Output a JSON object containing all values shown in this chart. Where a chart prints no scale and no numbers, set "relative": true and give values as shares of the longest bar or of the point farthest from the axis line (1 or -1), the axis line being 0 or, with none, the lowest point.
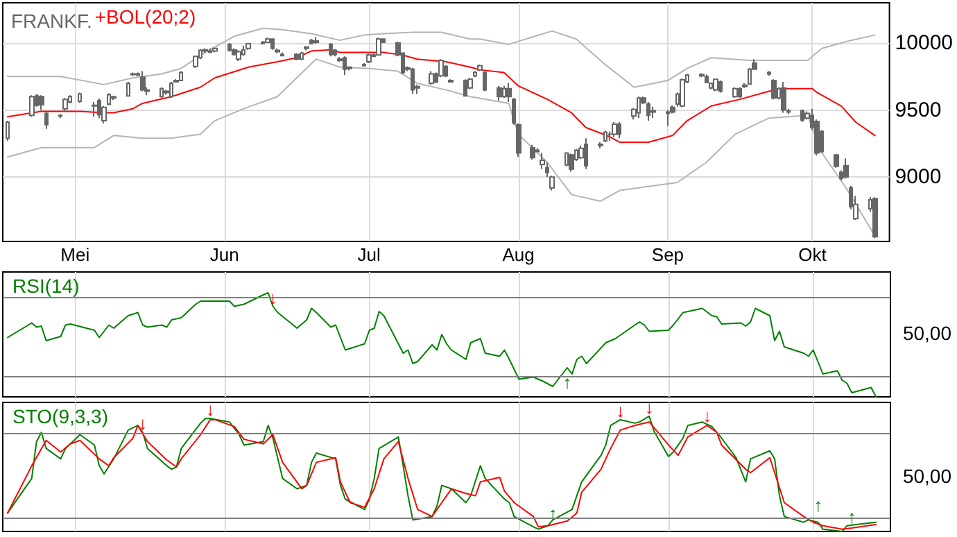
{
  "chart_data": [
    {
      "type": "candlestick",
      "title": "FRANKF.",
      "legend": "top left",
      "grid": true,
      "marker": "none",
      "xlim": [
        "--04-16",
        "--10-17"
      ],
      "xticks": [
        {
          "value": "--05-01",
          "label": "Mei"
        },
        {
          "value": "--06-01",
          "label": "Jun"
        },
        {
          "value": "--07-01",
          "label": "Jul"
        },
        {
          "value": "--08-01",
          "label": "Aug"
        },
        {
          "value": "--09-01",
          "label": "Sep"
        },
        {
          "value": "--10-01",
          "label": "Okt"
        }
      ],
      "ylim": [
        8520,
        10300
      ],
      "yticks": [
        9000,
        9500,
        10000
      ],
      "series": [
        {
          "color": "#666666",
          "x": [
            "--04-17",
            "--04-22",
            "--04-23",
            "--04-24",
            "--04-25",
            "--04-28",
            "--04-29",
            "--04-30",
            "--05-02",
            "--05-05",
            "--05-06",
            "--05-07",
            "--05-08",
            "--05-09",
            "--05-12",
            "--05-13",
            "--05-14",
            "--05-15",
            "--05-16",
            "--05-19",
            "--05-20",
            "--05-21",
            "--05-22",
            "--05-23",
            "--05-26",
            "--05-27",
            "--05-28",
            "--05-29",
            "--05-30",
            "--06-02",
            "--06-03",
            "--06-04",
            "--06-05",
            "--06-06",
            "--06-09",
            "--06-10",
            "--06-11",
            "--06-12",
            "--06-13",
            "--06-16",
            "--06-17",
            "--06-18",
            "--06-19",
            "--06-20",
            "--06-23",
            "--06-24",
            "--06-25",
            "--06-26",
            "--06-27",
            "--06-30",
            "--07-01",
            "--07-02",
            "--07-03",
            "--07-04",
            "--07-07",
            "--07-08",
            "--07-09",
            "--07-10",
            "--07-11",
            "--07-14",
            "--07-15",
            "--07-16",
            "--07-17",
            "--07-18",
            "--07-21",
            "--07-22",
            "--07-23",
            "--07-24",
            "--07-25",
            "--07-28",
            "--07-29",
            "--07-30",
            "--07-31",
            "--08-01",
            "--08-04",
            "--08-05",
            "--08-06",
            "--08-07",
            "--08-08",
            "--08-11",
            "--08-12",
            "--08-13",
            "--08-14",
            "--08-15",
            "--08-18",
            "--08-19",
            "--08-20",
            "--08-21",
            "--08-22",
            "--08-25",
            "--08-26",
            "--08-27",
            "--08-28",
            "--08-29",
            "--09-01",
            "--09-02",
            "--09-03",
            "--09-04",
            "--09-05",
            "--09-08",
            "--09-09",
            "--09-10",
            "--09-11",
            "--09-12",
            "--09-15",
            "--09-16",
            "--09-17",
            "--09-18",
            "--09-19",
            "--09-22",
            "--09-23",
            "--09-24",
            "--09-25",
            "--09-26",
            "--09-29",
            "--09-30",
            "--10-01",
            "--10-02",
            "--10-03",
            "--10-06",
            "--10-07",
            "--10-08",
            "--10-09",
            "--10-10",
            "--10-13",
            "--10-14"
          ],
          "ohlc": [
            [
              9290,
              9420,
              9270,
              9410
            ],
            [
              9460,
              9610,
              9450,
              9600
            ],
            [
              9605,
              9620,
              9525,
              9535
            ],
            [
              9600,
              9610,
              9500,
              9540
            ],
            [
              9475,
              9490,
              9360,
              9390
            ],
            [
              9455,
              9470,
              9440,
              9460
            ],
            [
              9510,
              9590,
              9490,
              9580
            ],
            [
              9560,
              9610,
              9550,
              9600
            ],
            [
              9565,
              9630,
              9555,
              9620
            ],
            [
              9535,
              9560,
              9450,
              9530
            ],
            [
              9570,
              9585,
              9440,
              9465
            ],
            [
              9420,
              9530,
              9400,
              9520
            ],
            [
              9545,
              9625,
              9535,
              9615
            ],
            [
              9590,
              9605,
              9575,
              9600
            ],
            [
              9605,
              9710,
              9600,
              9700
            ],
            [
              9765,
              9780,
              9755,
              9770
            ],
            [
              9770,
              9780,
              9755,
              9760
            ],
            [
              9745,
              9790,
              9640,
              9650
            ],
            [
              9640,
              9670,
              9610,
              9650
            ],
            [
              9600,
              9670,
              9585,
              9660
            ],
            [
              9630,
              9650,
              9615,
              9640
            ],
            [
              9600,
              9710,
              9590,
              9700
            ],
            [
              9720,
              9730,
              9705,
              9710
            ],
            [
              9720,
              9790,
              9715,
              9780
            ],
            [
              9825,
              9905,
              9815,
              9900
            ],
            [
              9890,
              9955,
              9880,
              9945
            ],
            [
              9940,
              9960,
              9925,
              9950
            ],
            [
              9940,
              9960,
              9925,
              9930
            ],
            [
              9940,
              9965,
              9930,
              9960
            ],
            [
              9990,
              10000,
              9935,
              9945
            ],
            [
              9950,
              9960,
              9905,
              9915
            ],
            [
              9880,
              9945,
              9865,
              9935
            ],
            [
              9915,
              9980,
              9905,
              9950
            ],
            [
              9960,
              10000,
              9950,
              9995
            ],
            [
              10005,
              10015,
              9990,
              9995
            ],
            [
              10005,
              10040,
              10000,
              10030
            ],
            [
              10030,
              10035,
              9950,
              9960
            ],
            [
              9945,
              9960,
              9925,
              9935
            ],
            [
              9915,
              9930,
              9900,
              9905
            ],
            [
              9915,
              9925,
              9870,
              9880
            ],
            [
              9880,
              9935,
              9870,
              9925
            ],
            [
              9960,
              9975,
              9945,
              9970
            ],
            [
              10020,
              10030,
              9990,
              9995
            ],
            [
              10005,
              10045,
              9995,
              10015
            ],
            [
              9990,
              10000,
              9900,
              9915
            ],
            [
              9945,
              9955,
              9900,
              9915
            ],
            [
              9880,
              9895,
              9860,
              9870
            ],
            [
              9890,
              9900,
              9760,
              9805
            ],
            [
              9810,
              9825,
              9795,
              9820
            ],
            [
              9840,
              9850,
              9825,
              9830
            ],
            [
              9860,
              9920,
              9850,
              9910
            ],
            [
              9910,
              9925,
              9895,
              9900
            ],
            [
              9910,
              10040,
              9905,
              10030
            ],
            [
              10030,
              10035,
              10000,
              10005
            ],
            [
              10000,
              10010,
              9900,
              9910
            ],
            [
              9925,
              9930,
              9770,
              9780
            ],
            [
              9805,
              9825,
              9790,
              9815
            ],
            [
              9805,
              9815,
              9620,
              9650
            ],
            [
              9675,
              9690,
              9620,
              9665
            ],
            [
              9700,
              9790,
              9690,
              9770
            ],
            [
              9770,
              9780,
              9700,
              9710
            ],
            [
              9755,
              9880,
              9745,
              9870
            ],
            [
              9825,
              9835,
              9745,
              9755
            ],
            [
              9720,
              9730,
              9705,
              9710
            ],
            [
              9720,
              9730,
              9600,
              9605
            ],
            [
              9665,
              9740,
              9655,
              9730
            ],
            [
              9755,
              9790,
              9745,
              9780
            ],
            [
              9800,
              9840,
              9790,
              9830
            ],
            [
              9780,
              9790,
              9640,
              9650
            ],
            [
              9665,
              9680,
              9570,
              9600
            ],
            [
              9600,
              9680,
              9590,
              9660
            ],
            [
              9660,
              9700,
              9560,
              9600
            ],
            [
              9580,
              9590,
              9390,
              9405
            ],
            [
              9390,
              9400,
              9150,
              9180
            ],
            [
              9220,
              9240,
              9130,
              9145
            ],
            [
              9200,
              9215,
              9185,
              9190
            ],
            [
              9095,
              9180,
              9060,
              9125
            ],
            [
              9070,
              9110,
              9000,
              9035
            ],
            [
              8920,
              9010,
              8900,
              9000
            ],
            [
              9090,
              9185,
              9080,
              9180
            ],
            [
              9165,
              9175,
              9040,
              9060
            ],
            [
              9130,
              9210,
              9120,
              9200
            ],
            [
              9145,
              9235,
              9135,
              9215
            ],
            [
              9245,
              9290,
              9060,
              9085
            ],
            [
              9235,
              9260,
              9215,
              9245
            ],
            [
              9270,
              9345,
              9260,
              9335
            ],
            [
              9320,
              9340,
              9270,
              9320
            ],
            [
              9320,
              9410,
              9300,
              9395
            ],
            [
              9395,
              9410,
              9290,
              9320
            ],
            [
              9455,
              9515,
              9430,
              9505
            ],
            [
              9480,
              9600,
              9440,
              9590
            ],
            [
              9590,
              9600,
              9545,
              9555
            ],
            [
              9545,
              9560,
              9420,
              9460
            ],
            [
              9485,
              9525,
              9440,
              9495
            ],
            [
              9485,
              9500,
              9380,
              9475
            ],
            [
              9520,
              9535,
              9475,
              9485
            ],
            [
              9545,
              9630,
              9525,
              9620
            ],
            [
              9530,
              9735,
              9520,
              9725
            ],
            [
              9710,
              9770,
              9700,
              9760
            ],
            [
              9765,
              9775,
              9745,
              9755
            ],
            [
              9750,
              9765,
              9700,
              9705
            ],
            [
              9665,
              9705,
              9655,
              9700
            ],
            [
              9650,
              9735,
              9640,
              9730
            ],
            [
              9710,
              9720,
              9630,
              9640
            ],
            [
              9600,
              9670,
              9590,
              9660
            ],
            [
              9660,
              9670,
              9590,
              9600
            ],
            [
              9675,
              9700,
              9665,
              9685
            ],
            [
              9695,
              9815,
              9690,
              9805
            ],
            [
              9850,
              9880,
              9800,
              9805
            ],
            [
              9770,
              9790,
              9755,
              9780
            ],
            [
              9720,
              9730,
              9580,
              9590
            ],
            [
              9590,
              9670,
              9580,
              9660
            ],
            [
              9665,
              9710,
              9480,
              9500
            ],
            [
              9495,
              9510,
              9470,
              9485
            ],
            [
              9495,
              9505,
              9410,
              9425
            ],
            [
              9440,
              9490,
              9430,
              9475
            ],
            [
              9460,
              9510,
              9350,
              9370
            ],
            [
              9415,
              9430,
              9160,
              9180
            ],
            [
              9340,
              9350,
              9180,
              9190
            ],
            [
              9165,
              9170,
              9070,
              9080
            ],
            [
              9035,
              9050,
              8975,
              8990
            ],
            [
              9085,
              9140,
              8990,
              9000
            ],
            [
              8920,
              8935,
              8760,
              8780
            ],
            [
              8690,
              8860,
              8680,
              8795
            ],
            [
              8765,
              8850,
              8740,
              8830
            ],
            [
              8840,
              8850,
              8545,
              8555
            ]
          ]
        },
        {
          "type": "line",
          "color": "#b4b4b4",
          "x": [
            "--04-17",
            "--04-28",
            "--05-07",
            "--05-13",
            "--05-19",
            "--05-23",
            "--05-28",
            "--06-03",
            "--06-09",
            "--06-13",
            "--06-19",
            "--06-25",
            "--06-30",
            "--07-04",
            "--07-10",
            "--07-16",
            "--07-22",
            "--07-24",
            "--07-30",
            "--08-08",
            "--08-13",
            "--08-19",
            "--08-25",
            "--09-01",
            "--09-05",
            "--09-10",
            "--09-18",
            "--09-30",
            "--10-03",
            "--10-08",
            "--10-14"
          ],
          "values": [
            9750,
            9750,
            9690,
            9740,
            9770,
            9810,
            9930,
            10050,
            10110,
            10100,
            10070,
            10020,
            10060,
            10070,
            10080,
            10080,
            10030,
            10030,
            9990,
            10090,
            10030,
            9840,
            9670,
            9720,
            9810,
            9890,
            9870,
            9870,
            9960,
            10010,
            10060
          ]
        },
        {
          "type": "line",
          "color": "#b4b4b4",
          "x": [
            "--04-17",
            "--04-24",
            "--05-05",
            "--05-09",
            "--05-15",
            "--05-21",
            "--05-27",
            "--05-30",
            "--06-05",
            "--06-12",
            "--06-16",
            "--06-20",
            "--06-25",
            "--07-01",
            "--07-07",
            "--07-11",
            "--07-17",
            "--07-22",
            "--07-30",
            "--08-01",
            "--08-07",
            "--08-12",
            "--08-18",
            "--08-22",
            "--08-28",
            "--09-03",
            "--09-09",
            "--09-15",
            "--09-22",
            "--09-30",
            "--10-03",
            "--10-08",
            "--10-14"
          ],
          "values": [
            9150,
            9220,
            9220,
            9310,
            9290,
            9290,
            9320,
            9420,
            9510,
            9600,
            9740,
            9880,
            9820,
            9810,
            9790,
            9700,
            9650,
            9600,
            9550,
            9320,
            9110,
            8870,
            8820,
            8900,
            8930,
            8960,
            9110,
            9320,
            9440,
            9460,
            9180,
            8920,
            8560
          ]
        },
        {
          "type": "line",
          "name": "+BOL(20;2)",
          "color": "#ff0000",
          "x": [
            "--04-17",
            "--04-24",
            "--05-02",
            "--05-07",
            "--05-09",
            "--05-13",
            "--05-15",
            "--05-21",
            "--05-27",
            "--05-30",
            "--06-06",
            "--06-12",
            "--06-16",
            "--06-19",
            "--06-23",
            "--06-25",
            "--07-01",
            "--07-04",
            "--07-08",
            "--07-11",
            "--07-17",
            "--07-22",
            "--07-24",
            "--07-29",
            "--08-01",
            "--08-07",
            "--08-12",
            "--08-15",
            "--08-20",
            "--08-22",
            "--08-28",
            "--09-02",
            "--09-05",
            "--09-10",
            "--09-16",
            "--09-22",
            "--09-25",
            "--10-01",
            "--10-02",
            "--10-07",
            "--10-10",
            "--10-14"
          ],
          "values": [
            9450,
            9490,
            9490,
            9480,
            9480,
            9510,
            9550,
            9600,
            9670,
            9740,
            9820,
            9860,
            9890,
            9940,
            9950,
            9930,
            9930,
            9930,
            9910,
            9880,
            9860,
            9820,
            9800,
            9780,
            9680,
            9580,
            9480,
            9370,
            9300,
            9260,
            9260,
            9310,
            9420,
            9530,
            9580,
            9640,
            9660,
            9660,
            9630,
            9530,
            9410,
            9310
          ]
        }
      ]
    },
    {
      "type": "line",
      "relative": true,
      "legend": "top left",
      "grid": "x",
      "marker": "none",
      "tick_labels": false,
      "xlim": [
        "--04-16",
        "--10-17"
      ],
      "xticks": [
        {
          "value": "--05-01",
          "label": null
        },
        {
          "value": "--06-01",
          "label": null
        },
        {
          "value": "--07-01",
          "label": null
        },
        {
          "value": "--08-01",
          "label": null
        },
        {
          "value": "--09-01",
          "label": null
        },
        {
          "value": "--10-01",
          "label": null
        }
      ],
      "ref_lines": [
        {
          "axis": "y",
          "value": 0.96,
          "color": "#808080"
        },
        {
          "axis": "y",
          "value": 0.2,
          "color": "#808080"
        }
      ],
      "annotations": [
        "50,00",
        {
          "text": "↓",
          "x": "--06-11",
          "y": 0.87
        },
        {
          "text": "↑",
          "x": "--08-11",
          "y": 0.28
        }
      ],
      "series": [
        {
          "name": "RSI(14)",
          "color": "#008000",
          "x": [
            "--04-17",
            "--04-22",
            "--04-23",
            "--04-24",
            "--04-25",
            "--04-28",
            "--04-29",
            "--04-30",
            "--05-05",
            "--05-06",
            "--05-07",
            "--05-08",
            "--05-09",
            "--05-12",
            "--05-14",
            "--05-15",
            "--05-16",
            "--05-19",
            "--05-20",
            "--05-21",
            "--05-23",
            "--05-26",
            "--05-27",
            "--06-02",
            "--06-03",
            "--06-05",
            "--06-09",
            "--06-10",
            "--06-11",
            "--06-12",
            "--06-16",
            "--06-18",
            "--06-19",
            "--06-20",
            "--06-23",
            "--06-24",
            "--06-26",
            "--06-30",
            "--07-01",
            "--07-02",
            "--07-03",
            "--07-04",
            "--07-08",
            "--07-09",
            "--07-10",
            "--07-11",
            "--07-14",
            "--07-15",
            "--07-16",
            "--07-17",
            "--07-18",
            "--07-21",
            "--07-22",
            "--07-24",
            "--07-25",
            "--07-28",
            "--07-29",
            "--07-30",
            "--08-01",
            "--08-04",
            "--08-06",
            "--08-08",
            "--08-11",
            "--08-12",
            "--08-13",
            "--08-14",
            "--08-15",
            "--08-19",
            "--08-21",
            "--08-25",
            "--08-26",
            "--08-27",
            "--08-28",
            "--09-01",
            "--09-02",
            "--09-04",
            "--09-08",
            "--09-10",
            "--09-11",
            "--09-12",
            "--09-16",
            "--09-17",
            "--09-18",
            "--09-19",
            "--09-22",
            "--09-23",
            "--09-24",
            "--09-25",
            "--09-29",
            "--09-30",
            "--10-01",
            "--10-03",
            "--10-06",
            "--10-07",
            "--10-08",
            "--10-09",
            "--10-13",
            "--10-14"
          ],
          "values": [
            0.57,
            0.71,
            0.67,
            0.68,
            0.54,
            0.58,
            0.69,
            0.7,
            0.64,
            0.57,
            0.63,
            0.69,
            0.66,
            0.78,
            0.81,
            0.69,
            0.67,
            0.69,
            0.67,
            0.74,
            0.76,
            0.89,
            0.92,
            0.92,
            0.87,
            0.89,
            0.98,
            1,
            0.87,
            0.81,
            0.66,
            0.74,
            0.85,
            0.81,
            0.67,
            0.69,
            0.45,
            0.51,
            0.64,
            0.66,
            0.82,
            0.78,
            0.42,
            0.45,
            0.32,
            0.34,
            0.5,
            0.45,
            0.6,
            0.51,
            0.45,
            0.36,
            0.52,
            0.56,
            0.42,
            0.39,
            0.45,
            0.36,
            0.17,
            0.19,
            0.15,
            0.1,
            0.28,
            0.22,
            0.36,
            0.39,
            0.32,
            0.52,
            0.56,
            0.69,
            0.72,
            0.69,
            0.63,
            0.64,
            0.69,
            0.81,
            0.85,
            0.78,
            0.77,
            0.7,
            0.71,
            0.68,
            0.72,
            0.85,
            0.78,
            0.54,
            0.63,
            0.48,
            0.42,
            0.39,
            0.45,
            0.22,
            0.25,
            0.16,
            0.13,
            0.04,
            0.09,
            0
          ]
        }
      ]
    },
    {
      "type": "line",
      "relative": true,
      "legend": "top left",
      "grid": "x",
      "marker": "none",
      "tick_labels": false,
      "xlim": [
        "--04-16",
        "--10-17"
      ],
      "xticks": [
        {
          "value": "--05-01",
          "label": null
        },
        {
          "value": "--06-01",
          "label": null
        },
        {
          "value": "--07-01",
          "label": null
        },
        {
          "value": "--08-01",
          "label": null
        },
        {
          "value": "--09-01",
          "label": null
        },
        {
          "value": "--10-01",
          "label": null
        }
      ],
      "ref_lines": [
        {
          "axis": "y",
          "value": 0.85,
          "color": "#808080"
        },
        {
          "axis": "y",
          "value": 0.12,
          "color": "#808080"
        }
      ],
      "annotations": [
        "50,00",
        {
          "text": "↓",
          "x": "--05-15",
          "y": 0.86
        },
        {
          "text": "↓",
          "x": "--05-29",
          "y": 0.98
        },
        {
          "text": "↓",
          "x": "--08-22",
          "y": 0.97
        },
        {
          "text": "↓",
          "x": "--08-28",
          "y": 1
        },
        {
          "text": "↓",
          "x": "--09-09",
          "y": 0.93
        },
        {
          "text": "↑",
          "x": "--08-06",
          "y": 0.03
        },
        {
          "text": "↑",
          "x": "--09-30",
          "y": 0.1
        },
        {
          "text": "↑",
          "x": "--10-07",
          "y": 0
        }
      ],
      "series": [
        {
          "name": "STO(9,3,3)",
          "color": "#008000",
          "x": [
            "--04-17",
            "--04-22",
            "--04-23",
            "--04-24",
            "--04-25",
            "--04-28",
            "--04-29",
            "--05-02",
            "--05-05",
            "--05-06",
            "--05-07",
            "--05-09",
            "--05-12",
            "--05-14",
            "--05-15",
            "--05-16",
            "--05-20",
            "--05-21",
            "--05-22",
            "--05-23",
            "--05-27",
            "--05-28",
            "--05-29",
            "--06-02",
            "--06-04",
            "--06-05",
            "--06-09",
            "--06-10",
            "--06-11",
            "--06-13",
            "--06-16",
            "--06-18",
            "--06-19",
            "--06-20",
            "--06-24",
            "--06-25",
            "--06-26",
            "--06-30",
            "--07-01",
            "--07-02",
            "--07-03",
            "--07-07",
            "--07-08",
            "--07-09",
            "--07-10",
            "--07-14",
            "--07-15",
            "--07-16",
            "--07-18",
            "--07-21",
            "--07-22",
            "--07-24",
            "--07-25",
            "--07-29",
            "--07-30",
            "--07-31",
            "--08-04",
            "--08-05",
            "--08-07",
            "--08-08",
            "--08-12",
            "--08-14",
            "--08-18",
            "--08-19",
            "--08-20",
            "--08-22",
            "--08-25",
            "--08-26",
            "--08-28",
            "--08-29",
            "--09-01",
            "--09-02",
            "--09-04",
            "--09-05",
            "--09-08",
            "--09-10",
            "--09-12",
            "--09-15",
            "--09-17",
            "--09-18",
            "--09-22",
            "--09-23",
            "--09-24",
            "--09-25",
            "--09-29",
            "--09-30",
            "--10-02",
            "--10-03",
            "--10-07",
            "--10-08",
            "--10-10",
            "--10-14"
          ],
          "values": [
            0.16,
            0.46,
            0.78,
            0.86,
            0.72,
            0.63,
            0.72,
            0.84,
            0.75,
            0.57,
            0.5,
            0.63,
            0.88,
            0.92,
            0.86,
            0.72,
            0.57,
            0.54,
            0.56,
            0.72,
            0.94,
            0.98,
            0.98,
            0.95,
            0.84,
            0.75,
            0.78,
            0.92,
            0.81,
            0.46,
            0.37,
            0.4,
            0.6,
            0.68,
            0.63,
            0.4,
            0.28,
            0.19,
            0.28,
            0.46,
            0.72,
            0.82,
            0.57,
            0.31,
            0.1,
            0.13,
            0.22,
            0.4,
            0.37,
            0.25,
            0.31,
            0.57,
            0.46,
            0.28,
            0.25,
            0.13,
            0.04,
            0.02,
            0.05,
            0.1,
            0.19,
            0.43,
            0.66,
            0.75,
            0.92,
            0.97,
            0.94,
            0.95,
            1,
            0.87,
            0.65,
            0.69,
            0.81,
            0.92,
            0.95,
            0.91,
            0.81,
            0.64,
            0.43,
            0.63,
            0.7,
            0.63,
            0.31,
            0.13,
            0.08,
            0.1,
            0.08,
            0.02,
            0,
            0.05,
            0.06,
            0.08
          ]
        },
        {
          "color": "#ff0000",
          "x": [
            "--04-17",
            "--04-22",
            "--04-25",
            "--04-28",
            "--04-30",
            "--05-02",
            "--05-06",
            "--05-08",
            "--05-09",
            "--05-13",
            "--05-14",
            "--05-16",
            "--05-20",
            "--05-22",
            "--05-23",
            "--05-27",
            "--05-29",
            "--05-30",
            "--06-03",
            "--06-05",
            "--06-09",
            "--06-11",
            "--06-13",
            "--06-17",
            "--06-18",
            "--06-20",
            "--06-24",
            "--06-25",
            "--06-27",
            "--06-30",
            "--07-02",
            "--07-04",
            "--07-07",
            "--07-09",
            "--07-11",
            "--07-14",
            "--07-16",
            "--07-18",
            "--07-21",
            "--07-23",
            "--07-24",
            "--07-28",
            "--07-29",
            "--07-31",
            "--08-04",
            "--08-05",
            "--08-07",
            "--08-11",
            "--08-13",
            "--08-14",
            "--08-18",
            "--08-20",
            "--08-22",
            "--08-25",
            "--08-28",
            "--09-01",
            "--09-03",
            "--09-05",
            "--09-09",
            "--09-11",
            "--09-12",
            "--09-17",
            "--09-18",
            "--09-22",
            "--09-23",
            "--09-25",
            "--09-29",
            "--10-01",
            "--10-03",
            "--10-07",
            "--10-09",
            "--10-14"
          ],
          "values": [
            0.16,
            0.57,
            0.79,
            0.69,
            0.76,
            0.79,
            0.63,
            0.57,
            0.64,
            0.81,
            0.92,
            0.78,
            0.62,
            0.56,
            0.63,
            0.84,
            0.97,
            0.97,
            0.91,
            0.8,
            0.76,
            0.84,
            0.6,
            0.37,
            0.4,
            0.6,
            0.64,
            0.43,
            0.25,
            0.21,
            0.37,
            0.63,
            0.78,
            0.46,
            0.19,
            0.13,
            0.25,
            0.37,
            0.33,
            0.31,
            0.43,
            0.47,
            0.35,
            0.25,
            0.13,
            0.04,
            0.05,
            0.09,
            0.16,
            0.34,
            0.54,
            0.72,
            0.88,
            0.92,
            0.95,
            0.75,
            0.66,
            0.82,
            0.92,
            0.86,
            0.75,
            0.54,
            0.51,
            0.64,
            0.51,
            0.25,
            0.13,
            0.08,
            0.05,
            0.02,
            0.03,
            0.06
          ]
        }
      ]
    }
  ]
}
